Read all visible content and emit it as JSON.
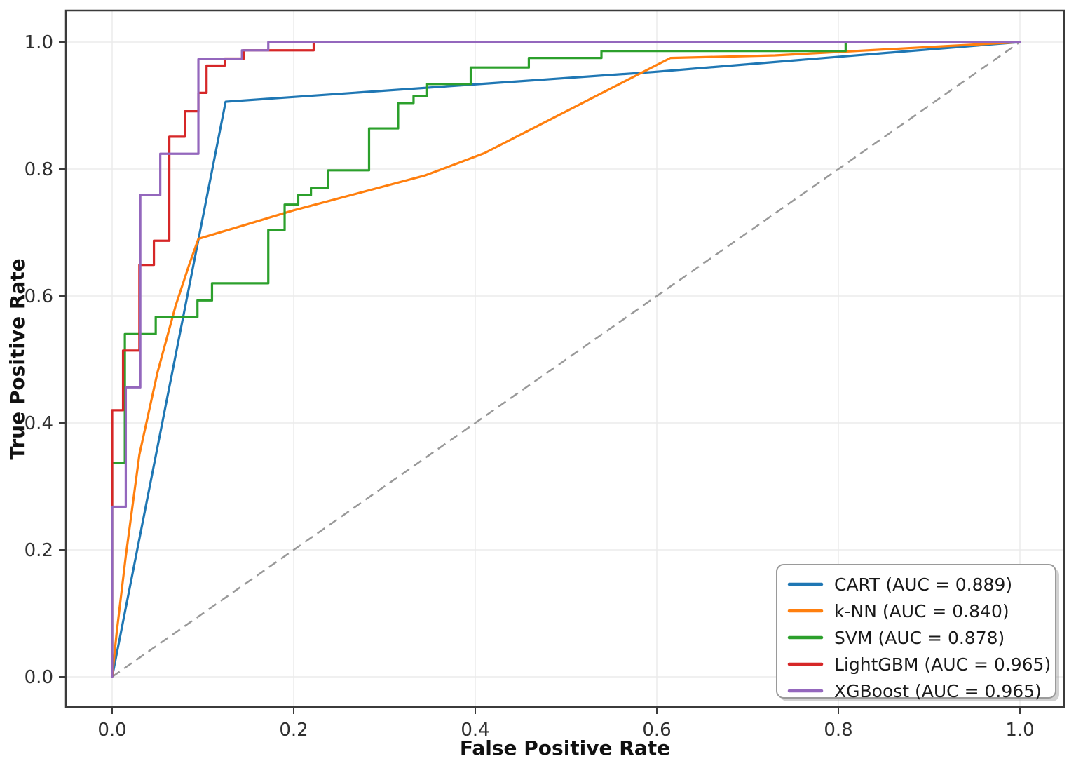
{
  "chart_data": {
    "type": "line",
    "subtype": "roc-curves",
    "title": "",
    "xlabel": "False Positive Rate",
    "ylabel": "True Positive Rate",
    "xlim": [
      -0.05,
      1.05
    ],
    "ylim": [
      -0.05,
      1.05
    ],
    "grid": true,
    "grid_color": "#ebebeb",
    "spine_color": "#3b3b3b",
    "legend_position": "lower right",
    "ticks": {
      "values": [
        0,
        0.2,
        0.4,
        0.6,
        0.8,
        1.0
      ],
      "labels": [
        "0.0",
        "0.2",
        "0.4",
        "0.6",
        "0.8",
        "1.0"
      ]
    },
    "reference_line": {
      "name": "chance-diagonal",
      "style": "dashed",
      "color": "#999999",
      "points": [
        [
          0,
          0
        ],
        [
          1,
          1
        ]
      ]
    },
    "series": [
      {
        "id": "cart",
        "label": "CART (AUC = 0.889)",
        "auc": 0.889,
        "color": "#1f77b4",
        "points": [
          [
            0,
            0
          ],
          [
            0.125,
            0.906
          ],
          [
            0.597,
            0.953
          ],
          [
            0.81,
            0.978
          ],
          [
            1,
            1
          ]
        ]
      },
      {
        "id": "knn",
        "label": "k-NN (AUC = 0.840)",
        "auc": 0.84,
        "color": "#ff7f0e",
        "points": [
          [
            0,
            0
          ],
          [
            0.005,
            0.07
          ],
          [
            0.015,
            0.19
          ],
          [
            0.03,
            0.35
          ],
          [
            0.05,
            0.48
          ],
          [
            0.07,
            0.585
          ],
          [
            0.085,
            0.65
          ],
          [
            0.095,
            0.69
          ],
          [
            0.2,
            0.735
          ],
          [
            0.345,
            0.79
          ],
          [
            0.41,
            0.825
          ],
          [
            0.615,
            0.975
          ],
          [
            0.73,
            0.979
          ],
          [
            1,
            1
          ]
        ]
      },
      {
        "id": "svm",
        "label": "SVM (AUC = 0.878)",
        "auc": 0.878,
        "color": "#2ca02c",
        "points": [
          [
            0,
            0
          ],
          [
            0,
            0.337
          ],
          [
            0.014,
            0.337
          ],
          [
            0.014,
            0.54
          ],
          [
            0.048,
            0.54
          ],
          [
            0.048,
            0.567
          ],
          [
            0.094,
            0.567
          ],
          [
            0.094,
            0.593
          ],
          [
            0.11,
            0.593
          ],
          [
            0.11,
            0.62
          ],
          [
            0.172,
            0.62
          ],
          [
            0.172,
            0.704
          ],
          [
            0.19,
            0.704
          ],
          [
            0.19,
            0.744
          ],
          [
            0.205,
            0.744
          ],
          [
            0.205,
            0.759
          ],
          [
            0.219,
            0.759
          ],
          [
            0.219,
            0.77
          ],
          [
            0.238,
            0.77
          ],
          [
            0.238,
            0.798
          ],
          [
            0.283,
            0.798
          ],
          [
            0.283,
            0.864
          ],
          [
            0.315,
            0.864
          ],
          [
            0.315,
            0.904
          ],
          [
            0.332,
            0.904
          ],
          [
            0.332,
            0.915
          ],
          [
            0.347,
            0.915
          ],
          [
            0.347,
            0.934
          ],
          [
            0.395,
            0.934
          ],
          [
            0.395,
            0.96
          ],
          [
            0.459,
            0.96
          ],
          [
            0.459,
            0.975
          ],
          [
            0.539,
            0.975
          ],
          [
            0.539,
            0.986
          ],
          [
            0.808,
            0.986
          ],
          [
            0.808,
            1
          ],
          [
            1,
            1
          ]
        ]
      },
      {
        "id": "lightgbm",
        "label": "LightGBM (AUC = 0.965)",
        "auc": 0.965,
        "color": "#d62728",
        "points": [
          [
            0,
            0
          ],
          [
            0,
            0.42
          ],
          [
            0.012,
            0.42
          ],
          [
            0.012,
            0.514
          ],
          [
            0.03,
            0.514
          ],
          [
            0.03,
            0.649
          ],
          [
            0.046,
            0.649
          ],
          [
            0.046,
            0.687
          ],
          [
            0.063,
            0.687
          ],
          [
            0.063,
            0.851
          ],
          [
            0.08,
            0.851
          ],
          [
            0.08,
            0.891
          ],
          [
            0.095,
            0.891
          ],
          [
            0.095,
            0.92
          ],
          [
            0.104,
            0.92
          ],
          [
            0.104,
            0.963
          ],
          [
            0.124,
            0.963
          ],
          [
            0.124,
            0.974
          ],
          [
            0.145,
            0.974
          ],
          [
            0.145,
            0.987
          ],
          [
            0.222,
            0.987
          ],
          [
            0.222,
            1
          ],
          [
            1,
            1
          ]
        ]
      },
      {
        "id": "xgboost",
        "label": "XGBoost (AUC = 0.965)",
        "auc": 0.965,
        "color": "#9467bd",
        "points": [
          [
            0,
            0
          ],
          [
            0,
            0.268
          ],
          [
            0.015,
            0.268
          ],
          [
            0.015,
            0.456
          ],
          [
            0.031,
            0.456
          ],
          [
            0.031,
            0.759
          ],
          [
            0.053,
            0.759
          ],
          [
            0.053,
            0.824
          ],
          [
            0.095,
            0.824
          ],
          [
            0.095,
            0.973
          ],
          [
            0.143,
            0.973
          ],
          [
            0.143,
            0.987
          ],
          [
            0.172,
            0.987
          ],
          [
            0.172,
            1
          ],
          [
            1,
            1
          ]
        ]
      }
    ]
  }
}
